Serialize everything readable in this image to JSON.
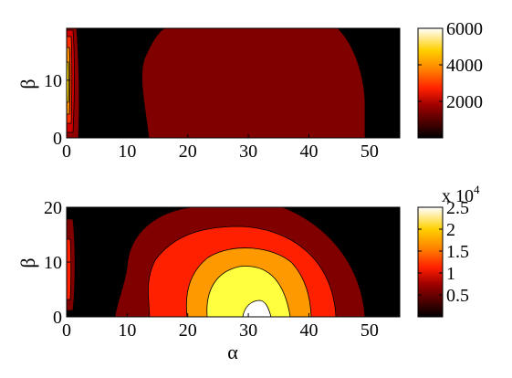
{
  "chart_data": [
    {
      "type": "heatmap",
      "subtype": "filled-contour",
      "xlabel": "",
      "ylabel": "β",
      "xlim": [
        0,
        55
      ],
      "ylim": [
        0,
        19
      ],
      "xticks": [
        0,
        10,
        20,
        30,
        40,
        50
      ],
      "yticks": [
        0,
        10
      ],
      "colormap": "hot",
      "colorbar": {
        "label": "",
        "range": [
          0,
          6000
        ],
        "ticks": [
          2000,
          4000,
          6000
        ],
        "tick_labels": [
          "2000",
          "4000",
          "6000"
        ]
      },
      "levels": [
        0,
        1000,
        2000,
        3000,
        4000,
        5000,
        6000
      ],
      "features": [
        {
          "region": "left edge strip near α=0, peak near β=10",
          "approx_max": 6000
        },
        {
          "region": "broad plateau α≈14–50, β≈0–19",
          "approx_value": 800
        }
      ]
    },
    {
      "type": "heatmap",
      "subtype": "filled-contour",
      "xlabel": "α",
      "ylabel": "β",
      "xlim": [
        0,
        55
      ],
      "ylim": [
        0,
        20
      ],
      "xticks": [
        0,
        10,
        20,
        30,
        40,
        50
      ],
      "yticks": [
        0,
        10,
        20
      ],
      "colormap": "hot",
      "colorbar": {
        "label": "x 10",
        "exponent": "4",
        "range": [
          0,
          2.5
        ],
        "ticks": [
          0.5,
          1,
          1.5,
          2,
          2.5
        ],
        "tick_labels": [
          "0.5",
          "1",
          "1.5",
          "2",
          "2.5"
        ]
      },
      "levels": [
        0,
        0.5,
        1,
        1.5,
        2,
        2.5
      ],
      "features": [
        {
          "region": "left edge strip near α=0",
          "approx_max": 1.0
        },
        {
          "region": "dome centered at α≈31, β=0",
          "approx_max": 2.5
        }
      ]
    }
  ],
  "colors": {
    "background": "#000000",
    "dark_red": "#800000",
    "red": "#ff2000",
    "orange": "#ff9900",
    "yellow": "#ffff40",
    "white": "#ffffff"
  }
}
